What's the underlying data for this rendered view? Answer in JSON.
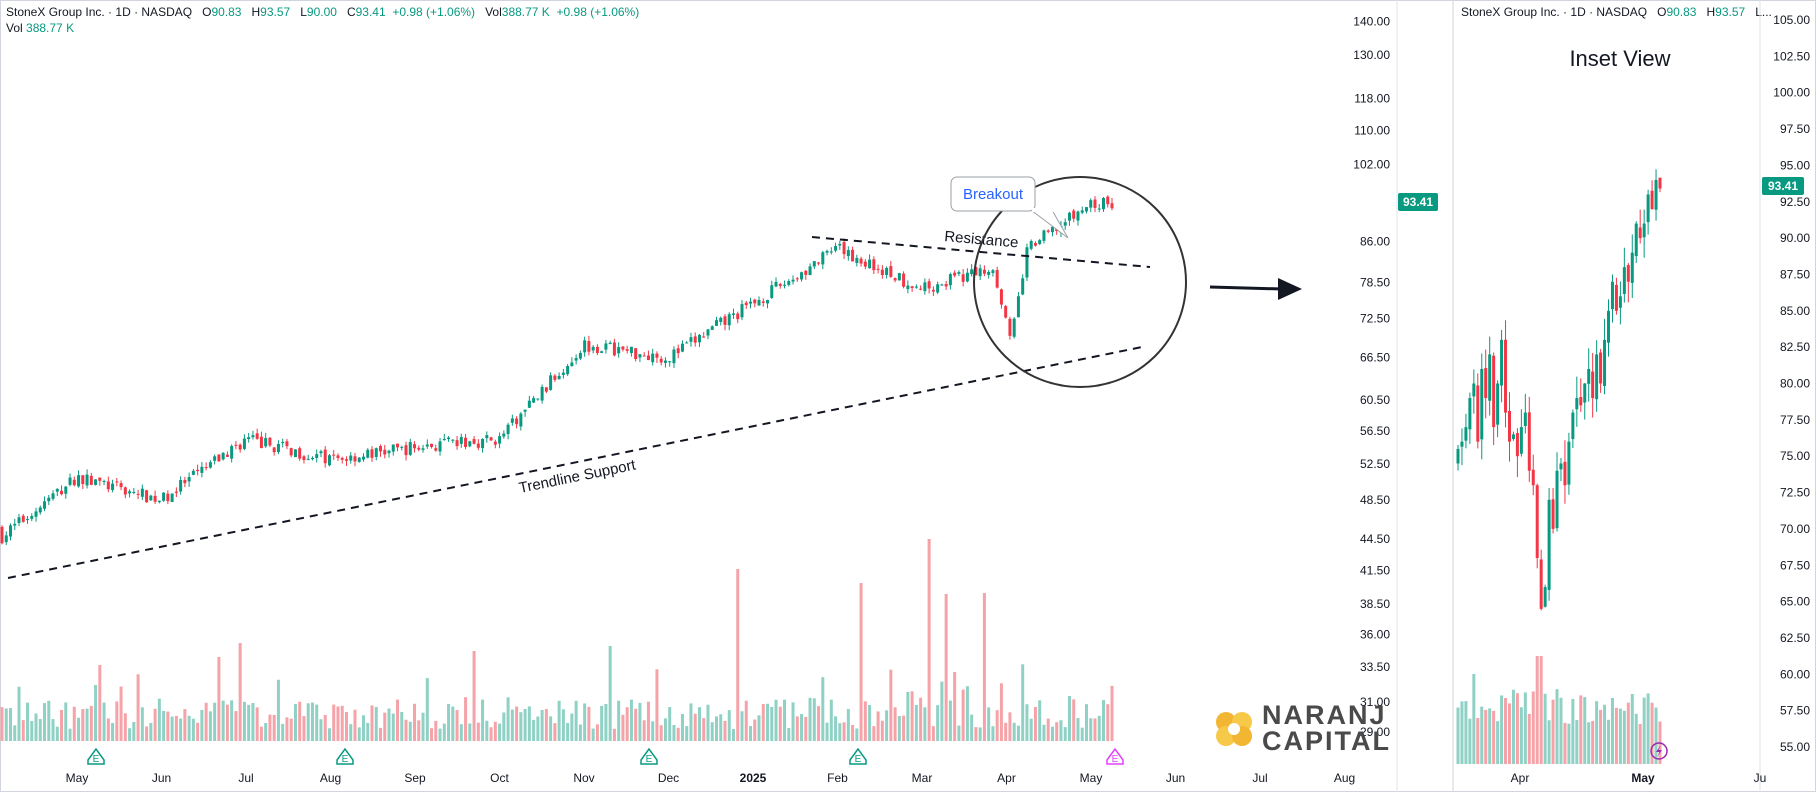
{
  "header": {
    "symbol": "StoneX Group Inc. · 1D · NASDAQ",
    "o_label": "O",
    "o_value": "90.83",
    "h_label": "H",
    "h_value": "93.57",
    "l_label": "L",
    "l_value": "90.00",
    "c_label": "C",
    "c_value": "93.41",
    "change": "+0.98 (+1.06%)",
    "vol_label": "Vol",
    "vol_value": "388.77 K",
    "vol_change": "+0.98 (+1.06%)",
    "vol_row_label": "Vol",
    "vol_row_value": "388.77 K"
  },
  "inset_header": {
    "symbol": "StoneX Group Inc. · 1D · NASDAQ",
    "o_label": "O",
    "o_value": "90.83",
    "h_label": "H",
    "h_value": "93.57",
    "tail": "L..."
  },
  "annotations": {
    "breakout": "Breakout",
    "resistance": "Resistance",
    "trendline": "Trendline Support",
    "inset_title": "Inset View"
  },
  "price_badge": "93.41",
  "inset_price_badge": "93.41",
  "earnings_marker": "E",
  "watermark": {
    "line1": "NARANJ",
    "line2": "CAPITAL"
  },
  "colors": {
    "up": "#089981",
    "down": "#f23645",
    "vol_up": "#8fd1c4",
    "vol_down": "#f5a3a8",
    "badge": "#089981"
  },
  "chart_data": [
    {
      "type": "candlestick",
      "title": "",
      "log_scale": true,
      "ylim": [
        27.5,
        143
      ],
      "y_ticks": [
        "140.00",
        "130.00",
        "118.00",
        "110.00",
        "102.00",
        "86.00",
        "78.50",
        "72.50",
        "66.50",
        "60.50",
        "56.50",
        "52.50",
        "48.50",
        "44.50",
        "41.50",
        "38.50",
        "36.00",
        "33.50",
        "31.00",
        "29.00"
      ],
      "x_ticks": [
        "May",
        "Jun",
        "Jul",
        "Aug",
        "Sep",
        "Oct",
        "Nov",
        "Dec",
        "2025",
        "Feb",
        "Mar",
        "Apr",
        "May",
        "Jun",
        "Jul",
        "Aug"
      ],
      "last_close": 93.41,
      "monthly_path": [
        {
          "month": "2024-04",
          "close": 44.0
        },
        {
          "month": "2024-05",
          "close": 51.0
        },
        {
          "month": "2024-06",
          "close": 48.5
        },
        {
          "month": "2024-07",
          "close": 55.5
        },
        {
          "month": "2024-08",
          "close": 53.0
        },
        {
          "month": "2024-09",
          "close": 54.5
        },
        {
          "month": "2024-10",
          "close": 55.5
        },
        {
          "month": "2024-11",
          "close": 68.5
        },
        {
          "month": "2024-12",
          "close": 66.5
        },
        {
          "month": "2025-01",
          "close": 75.0
        },
        {
          "month": "2025-02",
          "close": 84.5
        },
        {
          "month": "2025-03",
          "close": 77.5
        },
        {
          "month": "2025-04",
          "close": 82.0
        },
        {
          "month": "2025-05",
          "close": 93.41
        }
      ],
      "volume_note": "Daily volume bars; spikes in late Dec 2024, Feb and Mar 2025",
      "trendlines": [
        {
          "name": "Trendline Support",
          "from": {
            "date": "2024-04-18",
            "price": 41.5
          },
          "to": {
            "date": "2025-05-10",
            "price": 71.5
          }
        },
        {
          "name": "Resistance",
          "from": {
            "date": "2025-01-25",
            "price": 86.5
          },
          "to": {
            "date": "2025-05-12",
            "price": 81.5
          }
        }
      ]
    },
    {
      "type": "candlestick",
      "title": "Inset View",
      "ylim": [
        54.0,
        106.5
      ],
      "y_ticks": [
        "105.00",
        "102.50",
        "100.00",
        "97.50",
        "95.00",
        "92.50",
        "90.00",
        "87.50",
        "85.00",
        "82.50",
        "80.00",
        "77.50",
        "75.00",
        "72.50",
        "70.00",
        "67.50",
        "65.00",
        "62.50",
        "60.00",
        "57.50",
        "55.00"
      ],
      "x_ticks": [
        "Apr",
        "May",
        "Ju"
      ],
      "last_close": 93.41,
      "path": [
        {
          "period": "late Mar",
          "low": 74.0,
          "high": 83.5
        },
        {
          "period": "early Apr",
          "low": 64.5,
          "high": 78.0
        },
        {
          "period": "mid Apr",
          "low": 68.5,
          "high": 80.5
        },
        {
          "period": "late Apr",
          "low": 80.5,
          "high": 90.5
        },
        {
          "period": "early May",
          "low": 89.5,
          "high": 96.0
        }
      ]
    }
  ]
}
